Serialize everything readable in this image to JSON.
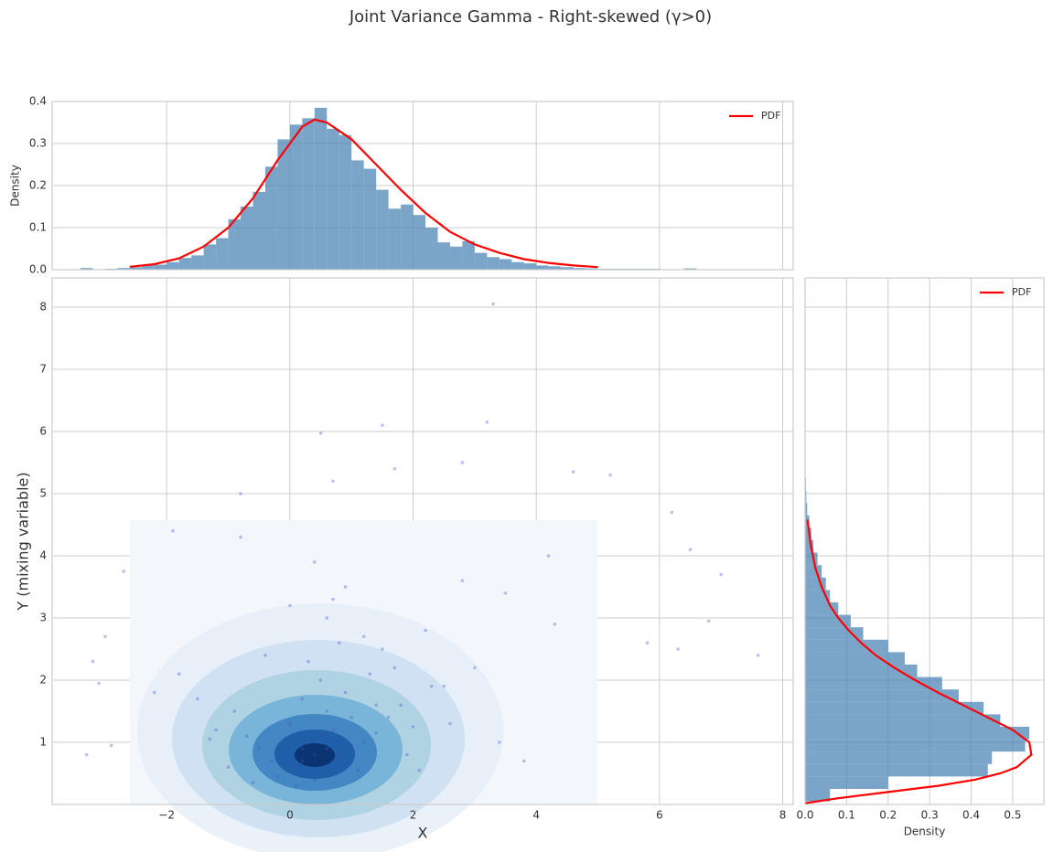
{
  "title": "Joint Variance Gamma - Right-skewed (γ>0)",
  "chart_data": [
    {
      "type": "histogram",
      "orientation": "vertical",
      "ylabel": "Density",
      "color": "#4682b4",
      "grid": true,
      "legend": "upper right",
      "show_xtick_labels": false,
      "xlim": [
        -3.86,
        8.17
      ],
      "ylim": [
        0,
        0.4
      ],
      "xticks": [
        {
          "value": -2,
          "label": "−2"
        },
        0,
        2,
        4,
        6,
        8
      ],
      "yticks": [
        {
          "value": 0,
          "label": "0.0"
        },
        0.1,
        0.2,
        0.3,
        0.4
      ],
      "bins": [
        -3.4,
        -3.2,
        -3,
        -2.8,
        -2.6,
        -2.4,
        -2.2,
        -2,
        -1.8,
        -1.6,
        -1.4,
        -1.2,
        -1,
        -0.8,
        -0.6,
        -0.4,
        -0.2,
        0,
        0.2,
        0.4,
        0.6,
        0.8,
        1,
        1.2,
        1.4,
        1.6,
        1.8,
        2,
        2.2,
        2.4,
        2.6,
        2.8,
        3,
        3.2,
        3.4,
        3.6,
        3.8,
        4,
        4.2,
        4.4,
        4.6,
        4.8,
        5,
        5.2,
        5.4,
        5.6,
        5.8,
        6,
        6.2,
        6.4,
        6.6,
        6.8,
        7,
        7.2,
        7.4,
        7.6
      ],
      "values": [
        0.004,
        0,
        0.002,
        0.004,
        0.006,
        0.01,
        0.012,
        0.018,
        0.028,
        0.034,
        0.06,
        0.075,
        0.12,
        0.15,
        0.185,
        0.245,
        0.31,
        0.345,
        0.36,
        0.385,
        0.335,
        0.32,
        0.26,
        0.24,
        0.19,
        0.145,
        0.155,
        0.13,
        0.1,
        0.065,
        0.055,
        0.068,
        0.04,
        0.03,
        0.025,
        0.018,
        0.015,
        0.01,
        0.008,
        0.006,
        0.004,
        0.003,
        0.002,
        0.002,
        0.002,
        0.002,
        0.002,
        0.001,
        0,
        0.003,
        0,
        0,
        0,
        0,
        0.001
      ],
      "pdf": {
        "name": "PDF",
        "color": "#ff0000",
        "x": [
          -2.6,
          -2.2,
          -1.8,
          -1.4,
          -1.0,
          -0.6,
          -0.2,
          0.2,
          0.4,
          0.6,
          1.0,
          1.4,
          1.8,
          2.2,
          2.6,
          3.0,
          3.4,
          3.8,
          4.2,
          4.6,
          5.0
        ],
        "values": [
          0.007,
          0.013,
          0.027,
          0.055,
          0.1,
          0.17,
          0.26,
          0.34,
          0.357,
          0.35,
          0.31,
          0.25,
          0.19,
          0.135,
          0.09,
          0.06,
          0.04,
          0.025,
          0.016,
          0.01,
          0.006
        ]
      }
    },
    {
      "type": "scatter",
      "xlabel": "X",
      "ylabel": "Y (mixing variable)",
      "color": "#4b4bc8",
      "grid": true,
      "xlim": [
        -3.86,
        8.17
      ],
      "ylim": [
        0,
        8.47
      ],
      "xticks": [
        {
          "value": -2,
          "label": "−2"
        },
        0,
        2,
        4,
        6,
        8
      ],
      "yticks": [
        1,
        2,
        3,
        4,
        5,
        6,
        7,
        8
      ],
      "x": [
        3.3,
        0.5,
        1.5,
        3.2,
        -0.8,
        0.7,
        1.7,
        2.8,
        4.6,
        5.2,
        6.2,
        6.5,
        7.6,
        7.0,
        6.8,
        -3.2,
        -3.1,
        -2.9,
        -3.3,
        -3.0,
        5.8,
        6.3,
        -2.7,
        -1.9,
        4.2,
        0.4,
        0.2,
        0.6,
        0.3,
        0.8,
        0.1,
        0.5,
        -0.1,
        1.0,
        0.9,
        0.3,
        0.7,
        -0.3,
        1.2,
        0.0,
        0.4,
        1.4,
        -0.5,
        0.6,
        1.1,
        0.2,
        -0.7,
        1.6,
        0.9,
        0.5,
        -0.2,
        1.8,
        0.3,
        2.0,
        -0.9,
        1.3,
        0.8,
        2.3,
        -1.2,
        0.1,
        1.5,
        2.6,
        -1.5,
        0.6,
        3.0,
        -0.4,
        1.9,
        2.2,
        -1.0,
        0.7,
        3.4,
        -1.8,
        2.8,
        1.0,
        -0.6,
        0.4,
        3.8,
        1.2,
        -2.2,
        2.5,
        0.0,
        4.3,
        1.7,
        -1.3,
        0.9,
        2.1,
        -0.8,
        3.5,
        0.2,
        1.4
      ],
      "values": [
        8.05,
        5.97,
        6.1,
        6.15,
        5.0,
        5.2,
        5.4,
        5.5,
        5.35,
        5.3,
        4.7,
        4.1,
        2.4,
        3.7,
        2.95,
        2.3,
        1.95,
        0.95,
        0.8,
        2.7,
        2.6,
        2.5,
        3.75,
        4.4,
        4.0,
        0.8,
        0.7,
        0.9,
        1.0,
        0.75,
        0.6,
        1.1,
        0.85,
        0.95,
        0.65,
        0.5,
        1.2,
        0.7,
        1.0,
        1.3,
        0.4,
        1.15,
        0.9,
        1.5,
        0.55,
        1.7,
        1.1,
        1.4,
        1.8,
        2.0,
        0.45,
        1.6,
        2.3,
        1.25,
        1.5,
        2.1,
        2.6,
        1.9,
        1.2,
        0.3,
        2.5,
        1.3,
        1.7,
        3.0,
        2.2,
        2.4,
        0.8,
        2.8,
        0.6,
        3.3,
        1.0,
        2.1,
        3.6,
        1.4,
        0.35,
        3.9,
        0.7,
        2.7,
        1.8,
        1.9,
        3.2,
        2.9,
        2.2,
        1.05,
        3.5,
        0.55,
        4.3,
        3.4,
        0.9,
        1.6
      ]
    },
    {
      "type": "histogram",
      "orientation": "horizontal",
      "xlabel": "Density",
      "color": "#4682b4",
      "grid": true,
      "legend": "upper right",
      "show_ytick_labels": false,
      "xlim": [
        0,
        0.575
      ],
      "ylim": [
        0,
        8.47
      ],
      "xticks": [
        {
          "value": 0,
          "label": "0.0"
        },
        0.1,
        0.2,
        0.3,
        0.4,
        0.5
      ],
      "yticks": [
        1,
        2,
        3,
        4,
        5,
        6,
        7,
        8
      ],
      "bins": [
        0.05,
        0.25,
        0.45,
        0.65,
        0.85,
        1.05,
        1.25,
        1.45,
        1.65,
        1.85,
        2.05,
        2.25,
        2.45,
        2.65,
        2.85,
        3.05,
        3.25,
        3.45,
        3.65,
        3.85,
        4.05,
        4.25,
        4.45,
        4.65,
        4.85,
        5.05,
        5.25,
        5.45
      ],
      "values": [
        0.06,
        0.2,
        0.44,
        0.45,
        0.53,
        0.54,
        0.47,
        0.43,
        0.37,
        0.33,
        0.27,
        0.24,
        0.2,
        0.14,
        0.11,
        0.08,
        0.06,
        0.05,
        0.04,
        0.03,
        0.02,
        0.015,
        0.01,
        0.005,
        0.003,
        0.002,
        0.001
      ],
      "pdf": {
        "name": "PDF",
        "color": "#ff0000",
        "y": [
          0.02,
          0.1,
          0.2,
          0.3,
          0.4,
          0.5,
          0.6,
          0.8,
          1.0,
          1.2,
          1.4,
          1.6,
          1.8,
          2.0,
          2.2,
          2.4,
          2.6,
          2.8,
          3.0,
          3.2,
          3.5,
          3.8,
          4.2,
          4.58
        ],
        "values": [
          0.0,
          0.08,
          0.2,
          0.32,
          0.41,
          0.47,
          0.51,
          0.545,
          0.54,
          0.5,
          0.44,
          0.38,
          0.32,
          0.265,
          0.215,
          0.17,
          0.135,
          0.105,
          0.08,
          0.06,
          0.04,
          0.025,
          0.013,
          0.006
        ]
      }
    }
  ]
}
